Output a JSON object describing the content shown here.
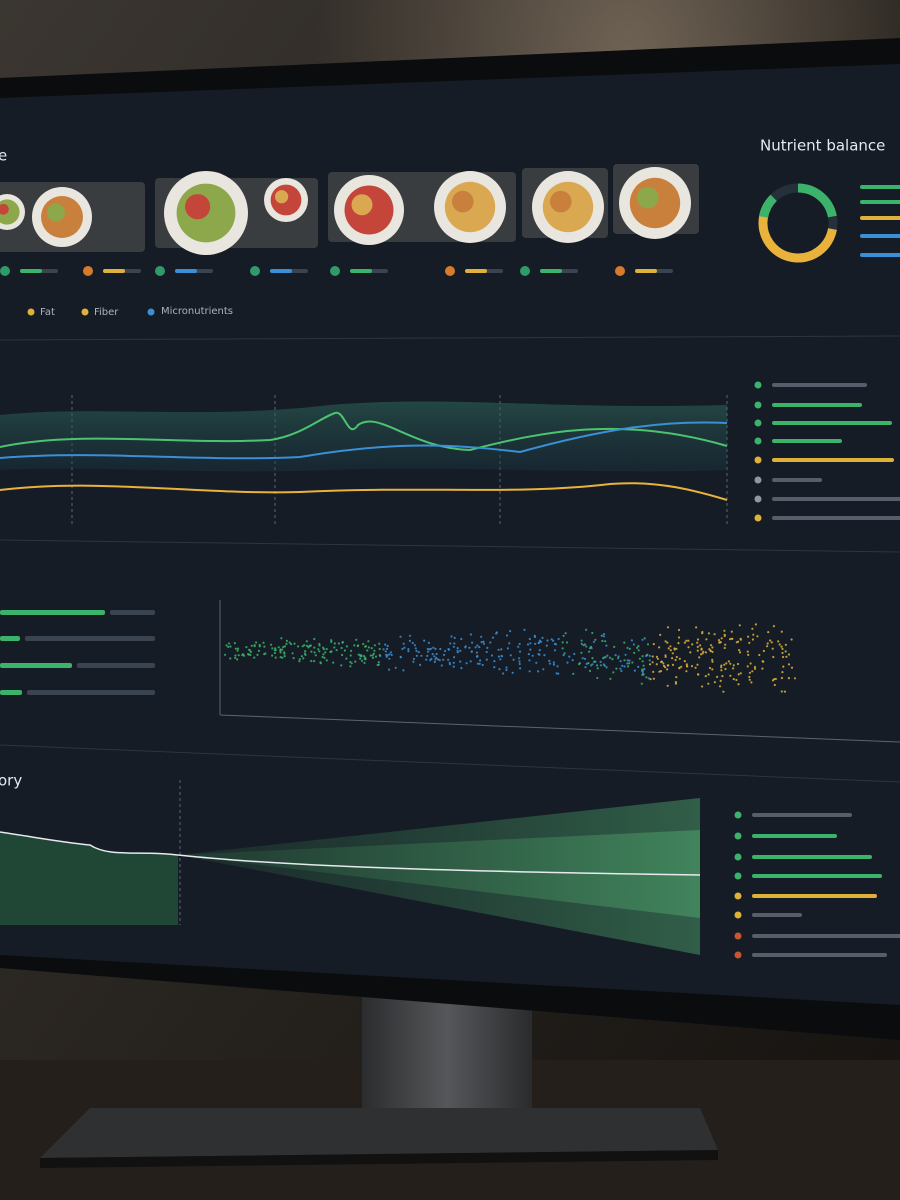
{
  "header": {
    "title": "e"
  },
  "nutrient_panel": {
    "title": "Nutrient balance"
  },
  "legend": [
    "Fat",
    "Fiber",
    "Micronutrients"
  ],
  "history": {
    "title": "ory"
  }
}
